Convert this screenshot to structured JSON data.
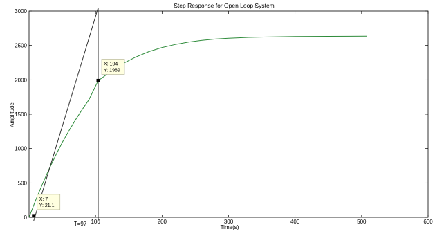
{
  "chart_data": {
    "type": "line",
    "title": "Step Response for Open Loop System",
    "xlabel": "Time(s)",
    "ylabel": "Amplitude",
    "xlim": [
      0,
      600
    ],
    "ylim": [
      0,
      3000
    ],
    "x_ticks": [
      100,
      200,
      300,
      400,
      500,
      600
    ],
    "x_tick_labels": [
      "100",
      "200",
      "300",
      "400",
      "500",
      "600"
    ],
    "y_ticks": [
      0,
      500,
      1000,
      1500,
      2000,
      2500,
      3000
    ],
    "y_tick_labels": [
      "0",
      "500",
      "1000",
      "1500",
      "2000",
      "2500",
      "3000"
    ],
    "grid": false,
    "series": [
      {
        "color": "#2e8b3a",
        "x": [
          0,
          10,
          20,
          30,
          40,
          50,
          60,
          70,
          80,
          90,
          104,
          120,
          140,
          160,
          180,
          200,
          220,
          240,
          260,
          280,
          300,
          330,
          360,
          400,
          450,
          508
        ],
        "y": [
          0,
          250,
          480,
          700,
          900,
          1090,
          1260,
          1420,
          1570,
          1710,
          1989,
          2100,
          2230,
          2330,
          2410,
          2470,
          2515,
          2550,
          2575,
          2593,
          2605,
          2617,
          2624,
          2630,
          2633,
          2635
        ]
      }
    ],
    "lines": [
      {
        "x": [
          7,
          104
        ],
        "y": [
          -50,
          3050
        ],
        "color": "#333333"
      },
      {
        "x": [
          104,
          104
        ],
        "y": [
          -50,
          3050
        ],
        "color": "#333333"
      }
    ],
    "datatips": [
      {
        "x": 7,
        "y": 21.1,
        "label_x": "X: 7",
        "label_y": "Y: 21.1"
      },
      {
        "x": 104,
        "y": 1989,
        "label_x": "X: 104",
        "label_y": "Y: 1989"
      }
    ],
    "annotations": [
      {
        "text": "T=97",
        "x": 77
      }
    ]
  }
}
